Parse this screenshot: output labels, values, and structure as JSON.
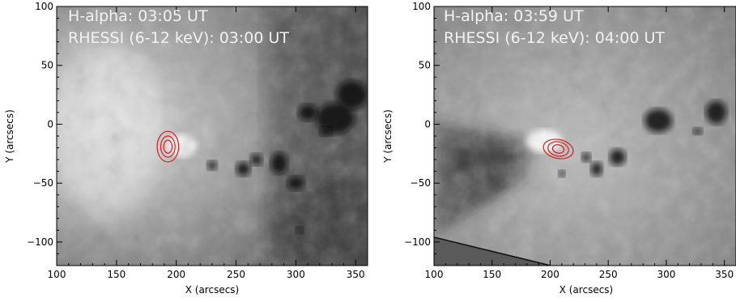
{
  "panels": [
    {
      "line1": "H-alpha: 03:05 UT",
      "line2": "RHESSI (6-12 keV): 03:00 UT",
      "xlabel": "X (arcsecs)",
      "ylabel": "Y (arcsecs)"
    },
    {
      "line1": "H-alpha: 03:59 UT",
      "line2": "RHESSI (6-12 keV): 04:00 UT",
      "xlabel": "X (arcsecs)",
      "ylabel": "Y (arcsecs)"
    }
  ],
  "chart_data": [
    {
      "type": "heatmap",
      "xlim": [
        100,
        360
      ],
      "ylim": [
        -120,
        100
      ],
      "xticks": [
        100,
        150,
        200,
        250,
        300,
        350
      ],
      "yticks": [
        -100,
        -50,
        0,
        50,
        100
      ],
      "contour_color": "#d42020",
      "contour_center": [
        193,
        -19
      ],
      "contour_radii": [
        [
          9,
          13
        ],
        [
          6,
          9
        ],
        [
          3.5,
          5.5
        ]
      ],
      "sunspots": [
        [
          333,
          5,
          16,
          13
        ],
        [
          310,
          10,
          8,
          7
        ],
        [
          347,
          25,
          13,
          12
        ],
        [
          286,
          -33,
          7,
          9
        ],
        [
          267,
          -30,
          5,
          5
        ],
        [
          256,
          -38,
          6,
          6
        ],
        [
          300,
          -50,
          7,
          6
        ],
        [
          325,
          -6,
          5,
          4
        ],
        [
          230,
          -35,
          4,
          4
        ],
        [
          303,
          -90,
          3,
          3
        ]
      ]
    },
    {
      "type": "heatmap",
      "xlim": [
        100,
        360
      ],
      "ylim": [
        -120,
        100
      ],
      "xticks": [
        100,
        150,
        200,
        250,
        300,
        350
      ],
      "yticks": [
        -100,
        -50,
        0,
        50,
        100
      ],
      "contour_color": "#d42020",
      "contour_center": [
        207,
        -21
      ],
      "contour_radii": [
        [
          13,
          8
        ],
        [
          9,
          6
        ],
        [
          5,
          3.5
        ]
      ],
      "sunspots": [
        [
          293,
          3,
          12,
          10
        ],
        [
          343,
          10,
          9,
          10
        ],
        [
          258,
          -28,
          7,
          7
        ],
        [
          240,
          -38,
          5,
          6
        ],
        [
          231,
          -28,
          4,
          4
        ],
        [
          327,
          -6,
          4,
          3
        ],
        [
          210,
          -42,
          3,
          3
        ]
      ]
    }
  ]
}
